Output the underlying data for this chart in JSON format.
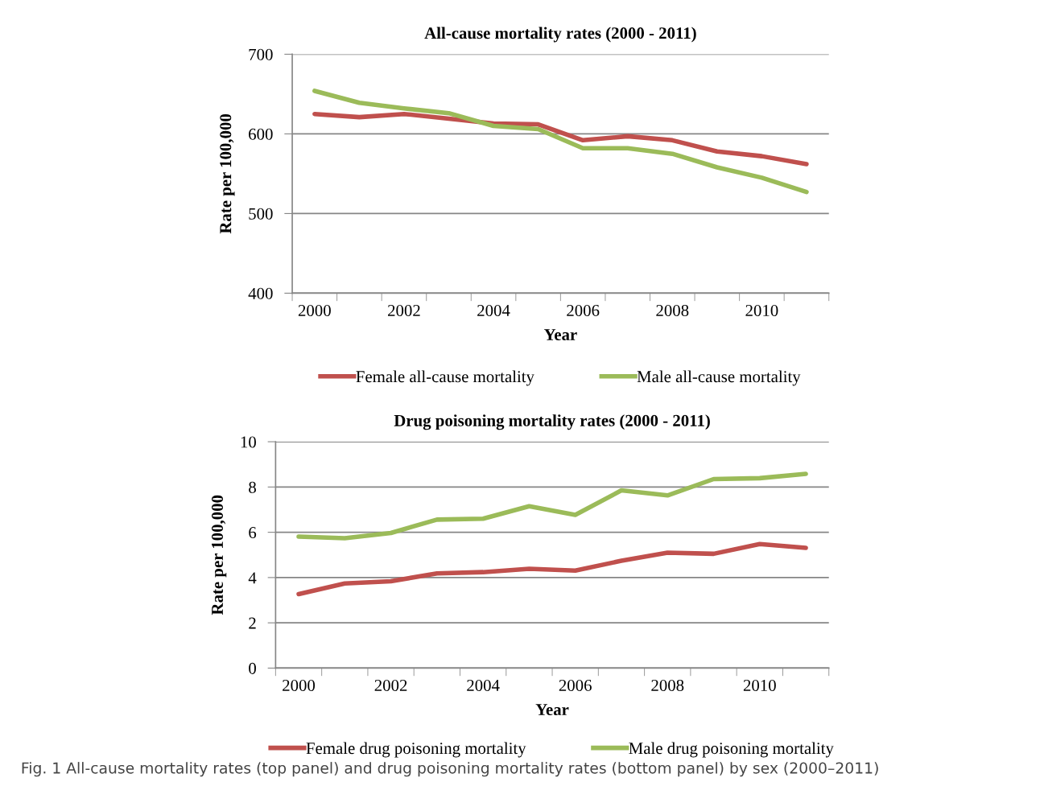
{
  "chart_data": [
    {
      "type": "line",
      "title": "All-cause mortality rates (2000 - 2011)",
      "xlabel": "Year",
      "ylabel": "Rate per 100,000",
      "categories": [
        "2000",
        null,
        "2002",
        null,
        "2004",
        null,
        "2006",
        null,
        "2008",
        null,
        "2010",
        null
      ],
      "series": [
        {
          "name": "Female all-cause mortality",
          "color": "#c0504d",
          "values": [
            625,
            621,
            625,
            619,
            613,
            612,
            592,
            597,
            592,
            578,
            572,
            562
          ]
        },
        {
          "name": "Male all-cause mortality",
          "color": "#9bbb59",
          "values": [
            654,
            639,
            632,
            626,
            610,
            606,
            582,
            582,
            575,
            558,
            545,
            527
          ]
        }
      ],
      "ylim": [
        400,
        700
      ],
      "yticks": [
        400,
        500,
        600,
        700
      ],
      "grid": "y",
      "legend": "bottom",
      "marker": "none",
      "line_style": "solid"
    },
    {
      "type": "line",
      "title": "Drug poisoning mortality rates (2000 - 2011)",
      "xlabel": "Year",
      "ylabel": "Rate per 100,000",
      "categories": [
        "2000",
        null,
        "2002",
        null,
        "2004",
        null,
        "2006",
        null,
        "2008",
        null,
        "2010",
        null
      ],
      "series": [
        {
          "name": "Female drug poisoning mortality",
          "color": "#c0504d",
          "values": [
            3.27,
            3.74,
            3.84,
            4.18,
            4.24,
            4.39,
            4.31,
            4.74,
            5.1,
            5.05,
            5.48,
            5.31
          ]
        },
        {
          "name": "Male drug poisoning mortality",
          "color": "#9bbb59",
          "values": [
            5.81,
            5.74,
            5.97,
            6.56,
            6.6,
            7.15,
            6.77,
            7.85,
            7.63,
            8.35,
            8.39,
            8.58
          ]
        }
      ],
      "ylim": [
        0,
        10
      ],
      "yticks": [
        0,
        2,
        4,
        6,
        8,
        10
      ],
      "grid": "y",
      "legend": "bottom",
      "marker": "none",
      "line_style": "solid",
      "annotations": [
        "Fig. 1 All-cause mortality rates (top panel) and drug poisoning mortality rates (bottom panel) by sex (2000–2011)"
      ]
    }
  ]
}
